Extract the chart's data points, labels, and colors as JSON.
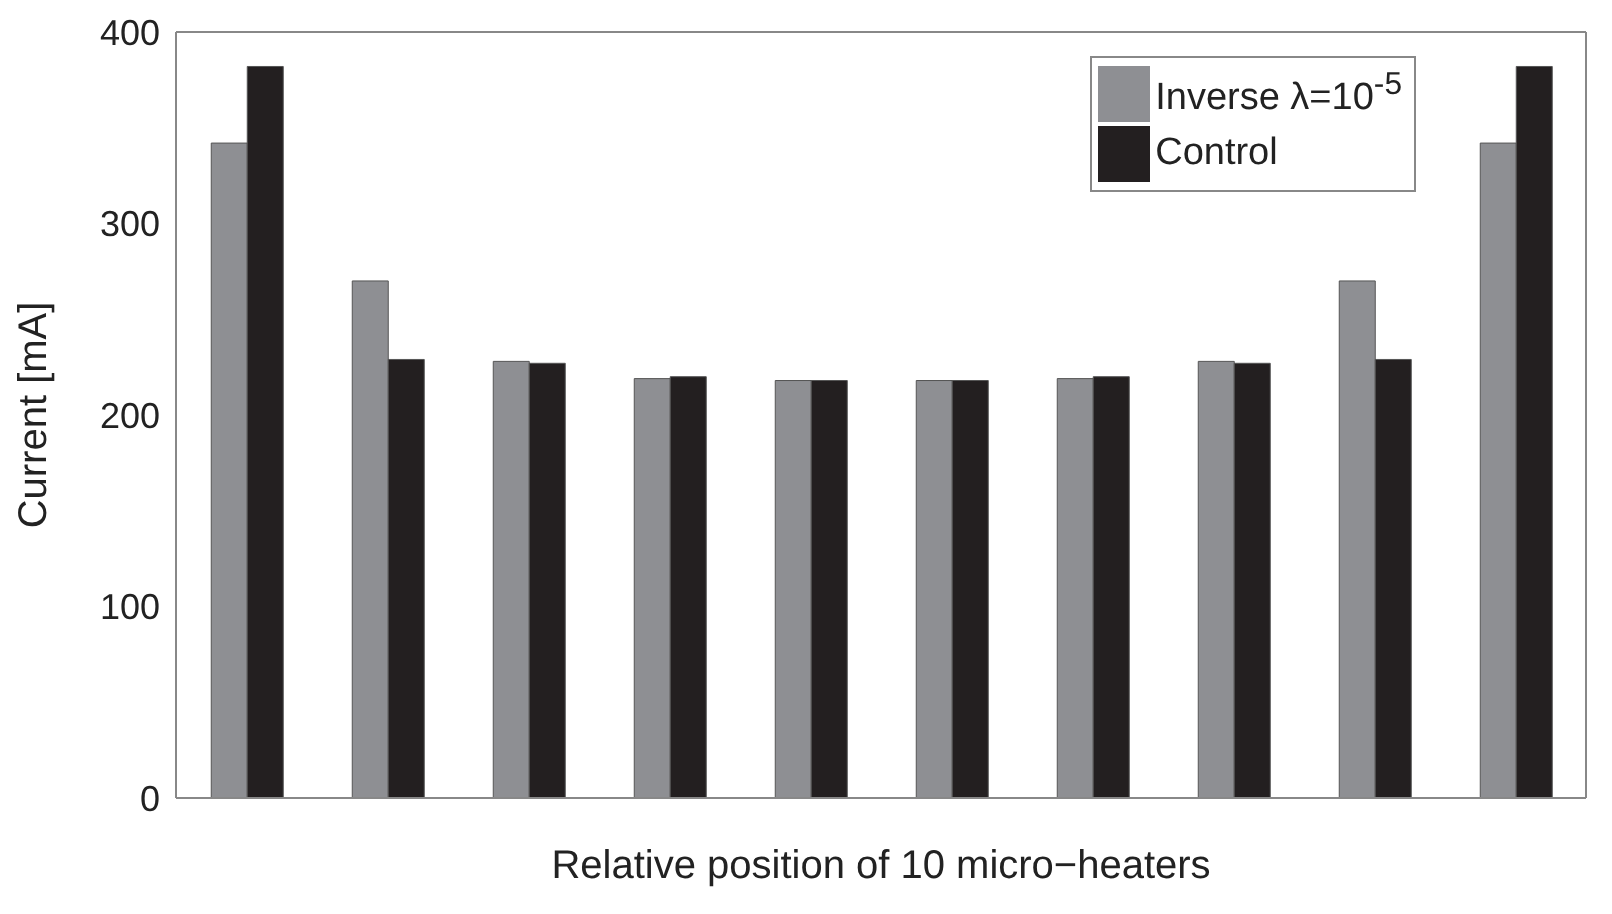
{
  "chart_data": {
    "type": "bar",
    "xlabel": "Relative position of 10 micro−heaters",
    "ylabel": "Current [mA]",
    "categories": [
      null,
      null,
      null,
      null,
      null,
      null,
      null,
      null,
      null,
      null
    ],
    "series": [
      {
        "name": "Inverse λ=10$^{-5}$",
        "color": "#8e8f93",
        "values": [
          342,
          270,
          228,
          219,
          218,
          218,
          219,
          228,
          270,
          342
        ]
      },
      {
        "name": "Control",
        "color": "#231f20",
        "values": [
          382,
          229,
          227,
          220,
          218,
          218,
          220,
          227,
          229,
          382
        ]
      }
    ],
    "ylim": [
      0,
      400
    ],
    "yticks": [
      0,
      100,
      200,
      300,
      400
    ],
    "legend": "top right"
  }
}
